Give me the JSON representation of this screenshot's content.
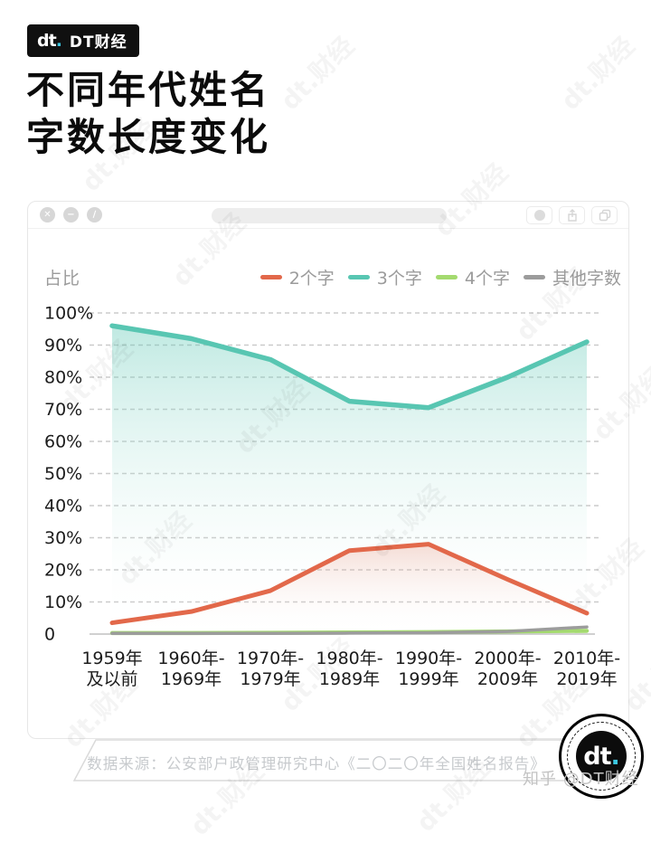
{
  "brand": {
    "logo_base": "dt",
    "logo_dot": ".",
    "name": "DT财经"
  },
  "title": {
    "line1": "不同年代姓名",
    "line2": "字数长度变化"
  },
  "watermark_text": "dt.财经",
  "colors": {
    "accent_cyan": "#3BC6E0",
    "grid_line": "#cbcbcb",
    "axis_line": "#b5b5b5",
    "muted_text": "#9b9b9b",
    "dark_text": "#1c1c1c"
  },
  "chart_data": {
    "type": "line",
    "title": "不同年代姓名字数长度变化",
    "xlabel": "",
    "ylabel": "占比",
    "ylim": [
      0,
      100
    ],
    "grid": "horizontal-dashed",
    "legend_position": "top-right",
    "yticks": {
      "labels": [
        "100%",
        "90%",
        "80%",
        "70%",
        "60%",
        "50%",
        "40%",
        "30%",
        "20%",
        "10%",
        "0"
      ],
      "values": [
        100,
        90,
        80,
        70,
        60,
        50,
        40,
        30,
        20,
        10,
        0
      ]
    },
    "categories": [
      [
        "1959年",
        "及以前"
      ],
      [
        "1960年-",
        "1969年"
      ],
      [
        "1970年-",
        "1979年"
      ],
      [
        "1980年-",
        "1989年"
      ],
      [
        "1990年-",
        "1999年"
      ],
      [
        "2000年-",
        "2009年"
      ],
      [
        "2010年-",
        "2019年"
      ]
    ],
    "series": [
      {
        "name": "2个字",
        "color": "#E2684A",
        "values": [
          3.5,
          7,
          13.5,
          26,
          28,
          17,
          6.5
        ]
      },
      {
        "name": "3个字",
        "color": "#58C6B2",
        "values": [
          96,
          92,
          85.5,
          72.5,
          70.5,
          80,
          91
        ]
      },
      {
        "name": "4个字",
        "color": "#A4DA6F",
        "values": [
          0.3,
          0.3,
          0.4,
          0.5,
          0.6,
          0.8,
          1.0
        ]
      },
      {
        "name": "其他字数",
        "color": "#9C9C9C",
        "values": [
          0.2,
          0.2,
          0.2,
          0.3,
          0.4,
          0.8,
          2.2
        ]
      }
    ]
  },
  "footer": {
    "source": "数据来源：公安部户政管理研究中心《二〇二〇年全国姓名报告》",
    "credit": "知乎 @DT财经",
    "seal_logo_base": "dt",
    "seal_logo_dot": "."
  }
}
